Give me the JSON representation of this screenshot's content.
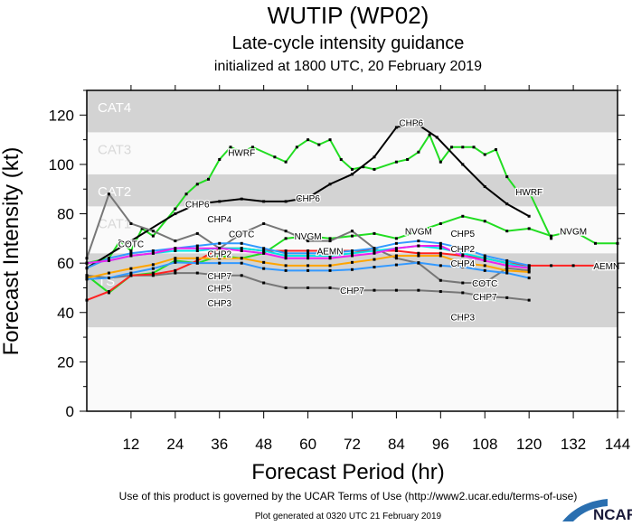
{
  "chart_data": {
    "type": "line",
    "title": "WUTIP (WP02)",
    "subtitle": "Late-cycle intensity guidance",
    "subtitle2": "initialized at 1800 UTC, 20 February 2019",
    "xlabel": "Forecast Period (hr)",
    "ylabel": "Forecast Intensity (kt)",
    "xlim": [
      0,
      144
    ],
    "ylim": [
      0,
      130
    ],
    "xticks": [
      12,
      24,
      36,
      48,
      60,
      72,
      84,
      96,
      108,
      120,
      132,
      144
    ],
    "yticks": [
      0,
      20,
      40,
      60,
      80,
      100,
      120
    ],
    "grid": false,
    "bands": [
      {
        "label": "TS",
        "from": 34,
        "to": 64,
        "color": "#d3d3d3"
      },
      {
        "label": "CAT1",
        "from": 64,
        "to": 83,
        "color": "#fafafa"
      },
      {
        "label": "CAT2",
        "from": 83,
        "to": 96,
        "color": "#d3d3d3"
      },
      {
        "label": "CAT3",
        "from": 96,
        "to": 113,
        "color": "#fafafa"
      },
      {
        "label": "CAT4",
        "from": 113,
        "to": 130,
        "color": "#d3d3d3"
      }
    ],
    "series": [
      {
        "name": "HWRF",
        "color": "#22dd22",
        "label_at": [
          42,
          120
        ],
        "x": [
          0,
          6,
          9,
          12,
          15,
          18,
          24,
          27,
          30,
          33,
          36,
          39,
          42,
          45,
          51,
          54,
          57,
          60,
          63,
          66,
          69,
          72,
          75,
          78,
          84,
          87,
          90,
          93,
          96,
          99,
          102,
          105,
          108,
          111,
          114,
          117,
          120,
          126
        ],
        "y": [
          60,
          62,
          69,
          65,
          74,
          71,
          82,
          88,
          92,
          94,
          102,
          107,
          105,
          107,
          103,
          101,
          107,
          110,
          108,
          110,
          102,
          98,
          99,
          98,
          101,
          102,
          105,
          112,
          101,
          107,
          107,
          107,
          104,
          106,
          95,
          89,
          89,
          70
        ]
      },
      {
        "name": "NVGM",
        "color": "#22dd22",
        "label_at": [
          60,
          90,
          132
        ],
        "x": [
          0,
          6,
          12,
          18,
          24,
          30,
          36,
          42,
          48,
          54,
          60,
          66,
          72,
          78,
          84,
          90,
          96,
          102,
          108,
          114,
          120,
          126,
          132,
          138,
          144
        ],
        "y": [
          55,
          48,
          55,
          56,
          61,
          60,
          63,
          62,
          64,
          70,
          71,
          70,
          71,
          72,
          70,
          73,
          76,
          79,
          77,
          73,
          74,
          71,
          73,
          68,
          68
        ]
      },
      {
        "name": "CHP6",
        "color": "#000000",
        "label_at": [
          30,
          60,
          88
        ],
        "x": [
          0,
          24,
          30,
          36,
          42,
          48,
          54,
          60,
          66,
          72,
          78,
          84,
          89,
          95,
          102,
          108,
          114,
          120
        ],
        "y": [
          58,
          80,
          84,
          85,
          86,
          85,
          85,
          86.5,
          92,
          96,
          103,
          115,
          117,
          111,
          100,
          91,
          84,
          79
        ]
      },
      {
        "name": "COTC",
        "color": "#777777",
        "label_at": [
          12,
          42,
          108
        ],
        "x": [
          0,
          6,
          12,
          18,
          24,
          30,
          36,
          42,
          48,
          54,
          60,
          66,
          72,
          78,
          84,
          90,
          96,
          102,
          108,
          114,
          120
        ],
        "y": [
          62,
          88,
          76,
          73,
          69,
          72,
          66,
          72,
          76,
          73,
          69,
          69,
          73,
          66,
          62,
          60,
          53,
          52,
          52,
          58,
          57
        ]
      },
      {
        "name": "CHP7",
        "color": "#777777",
        "label_at": [
          36,
          72,
          108
        ],
        "x": [
          0,
          6,
          12,
          18,
          24,
          30,
          36,
          42,
          48,
          54,
          60,
          66,
          72,
          78,
          84,
          90,
          96,
          102,
          108,
          114,
          120
        ],
        "y": [
          55,
          54,
          55,
          55,
          56,
          56,
          55,
          55,
          52,
          50,
          50,
          50,
          49,
          49,
          49,
          49,
          48.5,
          48,
          46.5,
          46,
          45
        ]
      },
      {
        "name": "AEMN",
        "color": "#ff2222",
        "label_at": [
          66,
          141
        ],
        "x": [
          0,
          6,
          12,
          18,
          24,
          30,
          36,
          42,
          48,
          54,
          60,
          66,
          72,
          78,
          84,
          90,
          96,
          102,
          108,
          114,
          120,
          126,
          132,
          138
        ],
        "y": [
          45,
          48.5,
          55,
          55.5,
          57,
          61,
          66,
          66,
          65,
          65,
          65,
          65,
          65,
          65,
          65,
          64,
          64,
          63,
          62,
          60,
          59,
          59,
          59,
          59
        ]
      },
      {
        "name": "CHP2",
        "color": "#3399ff",
        "label_at": [
          36,
          102
        ],
        "x": [
          0,
          6,
          12,
          18,
          24,
          30,
          36,
          42,
          48,
          54,
          60,
          66,
          72,
          78,
          84,
          90,
          96,
          102,
          108,
          114,
          120
        ],
        "y": [
          58,
          62,
          64,
          65,
          66,
          67,
          68,
          68,
          66,
          64,
          64,
          64,
          65,
          66,
          68,
          69,
          68,
          66,
          63,
          61,
          59
        ]
      },
      {
        "name": "CHP4",
        "color": "#00e5e5",
        "label_at": [
          36,
          102
        ],
        "x": [
          0,
          6,
          12,
          18,
          24,
          30,
          36,
          42,
          48,
          54,
          60,
          66,
          72,
          78,
          84,
          90,
          96,
          102,
          108,
          114,
          120
        ],
        "y": [
          60,
          61,
          63,
          64,
          65,
          65,
          66,
          66,
          65,
          63,
          63,
          63,
          64,
          65,
          66,
          67,
          66,
          64,
          62,
          60,
          58
        ]
      },
      {
        "name": "",
        "color": "#ee22ee",
        "x": [
          0,
          6,
          12,
          18,
          24,
          30,
          36,
          42,
          48,
          54,
          60,
          66,
          72,
          78,
          84,
          90,
          96,
          102,
          108,
          114,
          120
        ],
        "y": [
          60,
          61,
          63,
          64,
          66,
          66,
          66,
          65,
          64,
          62,
          62,
          62,
          63,
          64,
          66,
          67,
          67,
          63,
          61,
          59,
          58
        ]
      },
      {
        "name": "CHP5",
        "color": "#ffa500",
        "label_at": [
          36,
          102
        ],
        "x": [
          0,
          6,
          12,
          18,
          24,
          30,
          36,
          42,
          48,
          54,
          60,
          66,
          72,
          78,
          84,
          90,
          96,
          102,
          108,
          114,
          120
        ],
        "y": [
          54,
          56,
          57.8,
          59.4,
          62,
          62,
          62,
          62,
          60.3,
          59,
          59,
          59,
          60.3,
          61.5,
          63,
          63,
          63,
          60,
          59,
          57,
          56.4
        ]
      },
      {
        "name": "CHP3",
        "color": "#3399ff",
        "label_at": [
          36,
          102
        ],
        "x": [
          0,
          6,
          12,
          18,
          24,
          30,
          36,
          42,
          48,
          54,
          60,
          66,
          72,
          78,
          84,
          90,
          96,
          102,
          108,
          114,
          120
        ],
        "y": [
          53.5,
          54,
          56,
          57.8,
          60.3,
          60,
          60,
          60,
          57.8,
          57,
          57,
          57,
          57.4,
          58.4,
          59.3,
          60.2,
          59,
          58.4,
          57,
          56,
          54
        ]
      }
    ]
  },
  "footer": {
    "terms": "Use of this product is governed by the UCAR Terms of Use (http://www2.ucar.edu/terms-of-use)",
    "generated": "Plot generated at 0320 UTC   21 February 2019",
    "logo": "NCAR"
  }
}
